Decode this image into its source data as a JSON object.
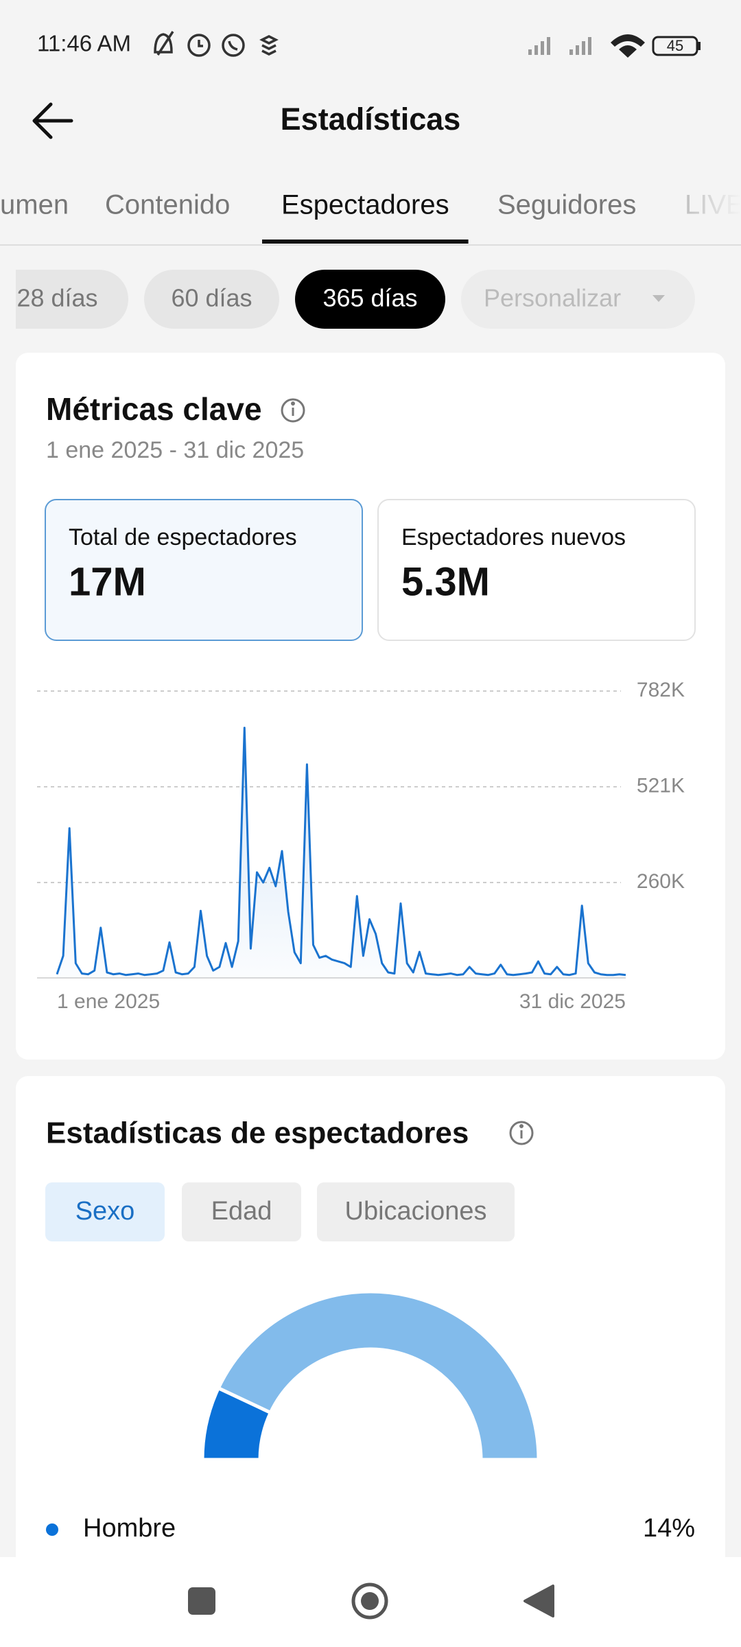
{
  "status_bar": {
    "time": "11:46 AM",
    "battery": "45"
  },
  "header": {
    "title": "Estadísticas"
  },
  "tabs": [
    {
      "label": "umen"
    },
    {
      "label": "Contenido"
    },
    {
      "label": "Espectadores",
      "active": true
    },
    {
      "label": "Seguidores"
    },
    {
      "label": "LIVE",
      "faded": true
    }
  ],
  "ranges": [
    {
      "label": "28 días"
    },
    {
      "label": "60 días"
    },
    {
      "label": "365 días",
      "active": true
    },
    {
      "label": "Personalizar",
      "disabled": true
    }
  ],
  "key_metrics": {
    "title": "Métricas clave",
    "date_range": "1 ene 2025 - 31 dic 2025",
    "cards": [
      {
        "label": "Total de espectadores",
        "value": "17M",
        "selected": true
      },
      {
        "label": "Espectadores nuevos",
        "value": "5.3M"
      }
    ]
  },
  "viewer_stats": {
    "title": "Estadísticas de espectadores",
    "tabs": [
      {
        "label": "Sexo",
        "active": true
      },
      {
        "label": "Edad"
      },
      {
        "label": "Ubicaciones"
      }
    ]
  },
  "chart_data": [
    {
      "type": "line",
      "color": "#1a73cf",
      "grid": true,
      "categories": [
        "1 ene 2025",
        null,
        null,
        null,
        null,
        null,
        null,
        null,
        null,
        null,
        null,
        null,
        null,
        null,
        null,
        null,
        null,
        null,
        null,
        null,
        null,
        null,
        null,
        null,
        null,
        null,
        null,
        null,
        null,
        null,
        null,
        null,
        null,
        null,
        null,
        null,
        null,
        null,
        null,
        null,
        null,
        null,
        null,
        null,
        null,
        null,
        null,
        null,
        null,
        null,
        null,
        null,
        null,
        null,
        null,
        null,
        null,
        null,
        null,
        null,
        null,
        null,
        null,
        null,
        null,
        null,
        null,
        null,
        null,
        null,
        null,
        null,
        null,
        null,
        null,
        null,
        null,
        null,
        null,
        null,
        null,
        null,
        null,
        null,
        null,
        null,
        null,
        null,
        null,
        null,
        null,
        "31 dic 2025"
      ],
      "values": [
        10000,
        60000,
        408000,
        40000,
        12000,
        10000,
        20000,
        137000,
        15000,
        10000,
        12000,
        8000,
        10000,
        12000,
        8000,
        10000,
        12000,
        20000,
        97000,
        15000,
        10000,
        12000,
        30000,
        183000,
        60000,
        20000,
        30000,
        95000,
        30000,
        100000,
        682000,
        80000,
        288000,
        260000,
        300000,
        250000,
        346000,
        180000,
        70000,
        40000,
        582000,
        90000,
        55000,
        60000,
        50000,
        45000,
        40000,
        30000,
        223000,
        60000,
        160000,
        120000,
        40000,
        15000,
        12000,
        203000,
        40000,
        15000,
        71000,
        12000,
        10000,
        8000,
        10000,
        12000,
        8000,
        10000,
        30000,
        12000,
        10000,
        8000,
        12000,
        36000,
        10000,
        8000,
        10000,
        12000,
        15000,
        45000,
        12000,
        10000,
        30000,
        10000,
        8000,
        12000,
        197000,
        40000,
        15000,
        10000,
        8000,
        8000,
        10000,
        8000
      ],
      "ylim": [
        0,
        782000
      ],
      "yticks": [
        {
          "value": 260000,
          "label": "260K"
        },
        {
          "value": 521000,
          "label": "521K"
        },
        {
          "value": 782000,
          "label": "782K"
        }
      ]
    },
    {
      "type": "donut",
      "categories": [
        "Hombre",
        null
      ],
      "values": [
        14,
        86
      ],
      "value_labels": [
        "14%",
        null
      ],
      "colors": [
        "#0b72d9",
        "#82bbeb"
      ]
    }
  ]
}
